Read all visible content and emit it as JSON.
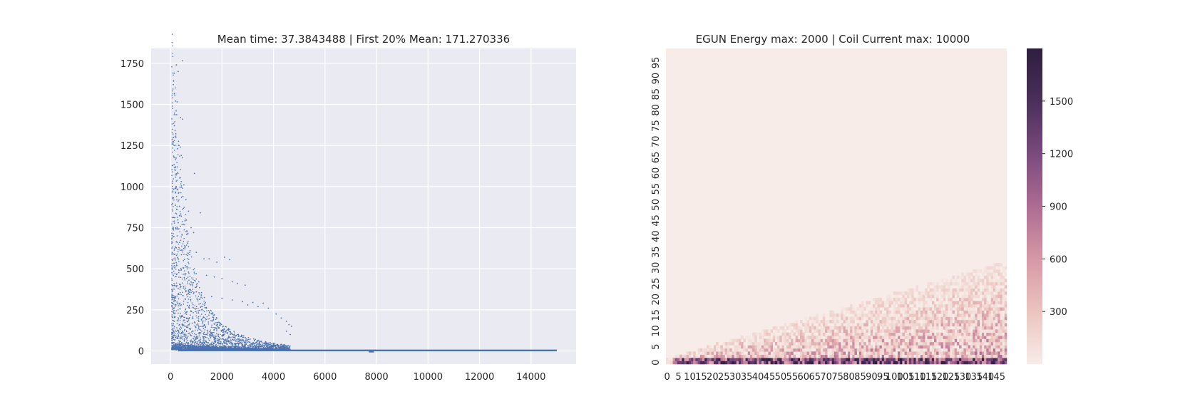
{
  "chart_data": [
    {
      "type": "scatter",
      "title": "Mean time: 37.3843488 | First 20% Mean: 171.270336",
      "xlabel": "",
      "ylabel": "",
      "xlim": [
        -750,
        15750
      ],
      "ylim": [
        -80,
        1840
      ],
      "xticks": [
        0,
        2000,
        4000,
        6000,
        8000,
        10000,
        12000,
        14000
      ],
      "xtick_labels": [
        "0",
        "2000",
        "4000",
        "6000",
        "8000",
        "10000",
        "12000",
        "14000"
      ],
      "yticks": [
        0,
        250,
        500,
        750,
        1000,
        1250,
        1500,
        1750
      ],
      "ytick_labels": [
        "0",
        "250",
        "500",
        "750",
        "1000",
        "1250",
        "1500",
        "1750"
      ],
      "grid": true,
      "point_color": "#4c72b0",
      "background": "#eaeaf2",
      "series": [
        {
          "points": [
            [
              100,
              1690
            ],
            [
              150,
              1690
            ],
            [
              230,
              1740
            ],
            [
              300,
              1700
            ],
            [
              460,
              1765
            ],
            [
              190,
              1600
            ],
            [
              200,
              1520
            ],
            [
              260,
              1515
            ],
            [
              220,
              1460
            ],
            [
              390,
              1420
            ],
            [
              470,
              1410
            ],
            [
              150,
              1370
            ],
            [
              180,
              1340
            ],
            [
              210,
              1300
            ],
            [
              140,
              1250
            ],
            [
              270,
              1230
            ],
            [
              330,
              1250
            ],
            [
              380,
              1240
            ],
            [
              420,
              1190
            ],
            [
              470,
              1175
            ],
            [
              200,
              1120
            ],
            [
              290,
              1080
            ],
            [
              420,
              1030
            ],
            [
              520,
              1010
            ],
            [
              930,
              1080
            ],
            [
              220,
              1000
            ],
            [
              260,
              980
            ],
            [
              310,
              960
            ],
            [
              480,
              940
            ],
            [
              600,
              920
            ],
            [
              250,
              860
            ],
            [
              350,
              880
            ],
            [
              420,
              820
            ],
            [
              700,
              850
            ],
            [
              1160,
              840
            ],
            [
              300,
              780
            ],
            [
              500,
              770
            ],
            [
              640,
              730
            ],
            [
              800,
              750
            ],
            [
              900,
              720
            ],
            [
              260,
              700
            ],
            [
              360,
              660
            ],
            [
              550,
              640
            ],
            [
              760,
              610
            ],
            [
              1000,
              600
            ],
            [
              1300,
              560
            ],
            [
              1500,
              560
            ],
            [
              1800,
              540
            ],
            [
              2100,
              570
            ],
            [
              2300,
              555
            ],
            [
              240,
              520
            ],
            [
              400,
              500
            ],
            [
              700,
              480
            ],
            [
              1000,
              470
            ],
            [
              1400,
              460
            ],
            [
              1700,
              450
            ],
            [
              2000,
              440
            ],
            [
              2400,
              420
            ],
            [
              2600,
              410
            ],
            [
              2900,
              400
            ],
            [
              300,
              380
            ],
            [
              600,
              360
            ],
            [
              900,
              350
            ],
            [
              1200,
              340
            ],
            [
              1600,
              330
            ],
            [
              2000,
              320
            ],
            [
              2400,
              310
            ],
            [
              2800,
              300
            ],
            [
              3200,
              295
            ],
            [
              3600,
              290
            ],
            [
              3000,
              280
            ],
            [
              3400,
              270
            ],
            [
              3800,
              260
            ],
            [
              4100,
              225
            ],
            [
              4300,
              200
            ],
            [
              4500,
              180
            ],
            [
              4600,
              160
            ],
            [
              4700,
              150
            ],
            [
              4500,
              120
            ],
            [
              4650,
              100
            ]
          ],
          "dense_band": {
            "x_range": [
              0,
              15000
            ],
            "baseline": 3,
            "description": "points decaying from the early transient toward zero, then a dense near-zero band to x=15000"
          }
        }
      ]
    },
    {
      "type": "heatmap",
      "title": "EGUN Energy max: 2000 | Coil Current max: 10000",
      "xlabel": "",
      "ylabel": "",
      "n_cols": 150,
      "n_rows": 100,
      "xtick_labels": [
        "0",
        "5",
        "10",
        "15",
        "20",
        "25",
        "30",
        "35",
        "40",
        "45",
        "50",
        "55",
        "60",
        "65",
        "70",
        "75",
        "80",
        "85",
        "90",
        "95",
        "100",
        "105",
        "110",
        "115",
        "120",
        "125",
        "130",
        "135",
        "140",
        "145"
      ],
      "ytick_labels": [
        "0",
        "5",
        "10",
        "15",
        "20",
        "25",
        "30",
        "35",
        "40",
        "45",
        "50",
        "55",
        "60",
        "65",
        "70",
        "75",
        "80",
        "85",
        "90",
        "95"
      ],
      "colorbar": {
        "min": 0,
        "max": 1800,
        "ticks": [
          300,
          600,
          900,
          1200,
          1500
        ],
        "tick_labels": [
          "300",
          "600",
          "900",
          "1200",
          "1500"
        ],
        "colors": [
          "#f7ece8",
          "#ecc4bf",
          "#d698a6",
          "#ad6b92",
          "#7a4a7d",
          "#4a2f5a",
          "#2d1e3e"
        ]
      },
      "structure": {
        "background_value": 0,
        "populated_region": "wedge from bottom-left, boundary rising from row ~1 at column 0 to row ~31 at column 150",
        "hot_rows": "strongest values along the bottom rows"
      }
    }
  ]
}
